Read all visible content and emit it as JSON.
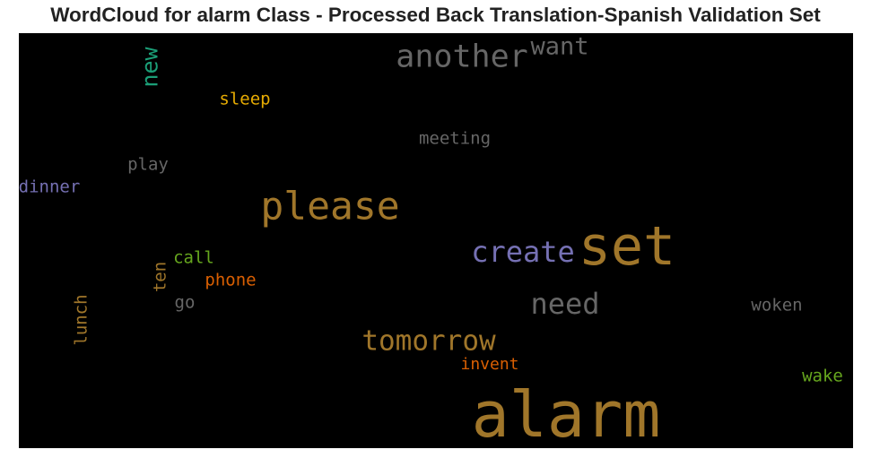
{
  "title": "WordCloud for alarm Class - Processed Back Translation-Spanish Validation Set",
  "chart_data": {
    "type": "wordcloud",
    "title": "WordCloud for alarm Class - Processed Back Translation-Spanish Validation Set",
    "background": "#000000",
    "words": [
      {
        "text": "alarm",
        "weight": 1.0,
        "color": "#a0762a",
        "vertical": false
      },
      {
        "text": "set",
        "weight": 0.86,
        "color": "#a0762a",
        "vertical": false
      },
      {
        "text": "please",
        "weight": 0.62,
        "color": "#a0762a",
        "vertical": false
      },
      {
        "text": "another",
        "weight": 0.5,
        "color": "#666666",
        "vertical": false
      },
      {
        "text": "create",
        "weight": 0.46,
        "color": "#7570b3",
        "vertical": false
      },
      {
        "text": "need",
        "weight": 0.46,
        "color": "#666666",
        "vertical": false
      },
      {
        "text": "tomorrow",
        "weight": 0.44,
        "color": "#a0762a",
        "vertical": false
      },
      {
        "text": "want",
        "weight": 0.38,
        "color": "#666666",
        "vertical": false
      },
      {
        "text": "new",
        "weight": 0.36,
        "color": "#1b9e77",
        "vertical": true
      },
      {
        "text": "sleep",
        "weight": 0.27,
        "color": "#e6ab02",
        "vertical": false
      },
      {
        "text": "meeting",
        "weight": 0.27,
        "color": "#666666",
        "vertical": false
      },
      {
        "text": "play",
        "weight": 0.27,
        "color": "#666666",
        "vertical": false
      },
      {
        "text": "dinner",
        "weight": 0.27,
        "color": "#7570b3",
        "vertical": false
      },
      {
        "text": "call",
        "weight": 0.27,
        "color": "#66a61e",
        "vertical": false
      },
      {
        "text": "ten",
        "weight": 0.27,
        "color": "#a0762a",
        "vertical": true
      },
      {
        "text": "phone",
        "weight": 0.27,
        "color": "#d95f02",
        "vertical": false
      },
      {
        "text": "go",
        "weight": 0.27,
        "color": "#666666",
        "vertical": false
      },
      {
        "text": "lunch",
        "weight": 0.27,
        "color": "#a0762a",
        "vertical": true
      },
      {
        "text": "woken",
        "weight": 0.27,
        "color": "#666666",
        "vertical": false
      },
      {
        "text": "invent",
        "weight": 0.25,
        "color": "#d95f02",
        "vertical": false
      },
      {
        "text": "wake",
        "weight": 0.27,
        "color": "#66a61e",
        "vertical": false
      }
    ]
  }
}
